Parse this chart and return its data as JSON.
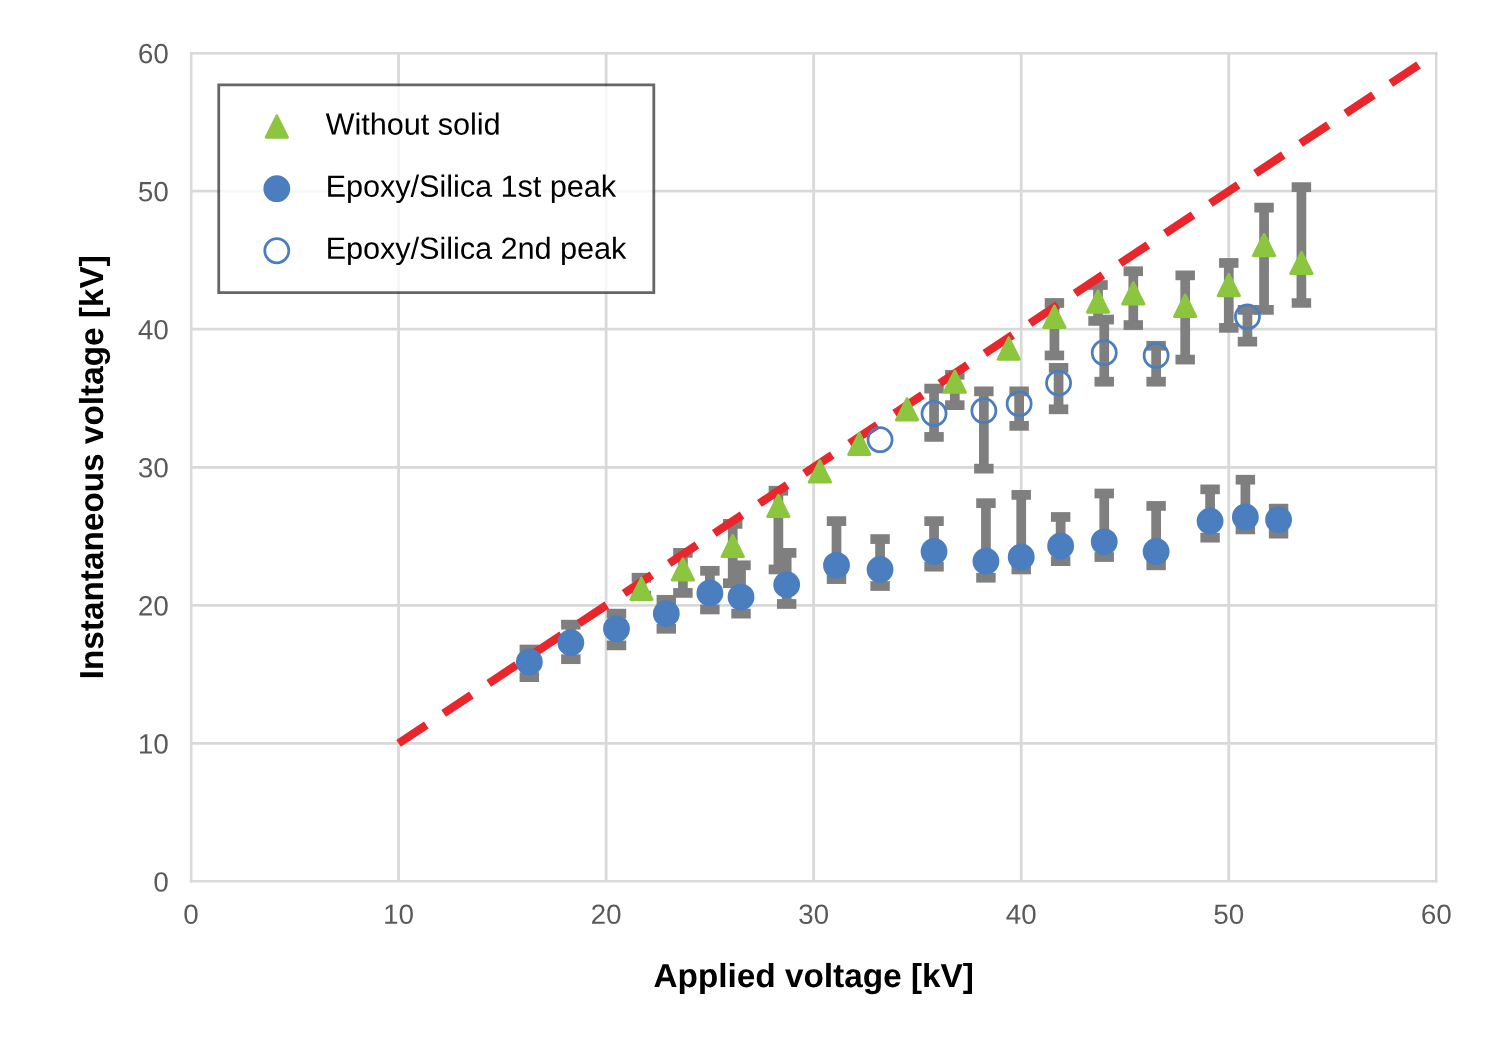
{
  "chart_data": {
    "type": "scatter",
    "xlabel": "Applied voltage [kV]",
    "ylabel": "Instantaneous voltage [kV]",
    "xlim": [
      0,
      60
    ],
    "ylim": [
      0,
      60
    ],
    "xticks": [
      0,
      10,
      20,
      30,
      40,
      50,
      60
    ],
    "yticks": [
      0,
      10,
      20,
      30,
      40,
      50,
      60
    ],
    "grid": true,
    "legend": "top left",
    "series": [
      {
        "type": "line",
        "color": "#e8262b",
        "line_style": "dashed",
        "marker": "none",
        "x": [
          10,
          60
        ],
        "values": [
          10,
          60
        ]
      },
      {
        "name": "Without solid",
        "color": "#8cc63f",
        "marker": "triangle",
        "x": [
          21.7,
          23.7,
          26.1,
          28.3,
          30.3,
          32.2,
          34.5,
          36.8,
          39.4,
          41.6,
          43.7,
          45.4,
          47.9,
          50.0,
          51.7,
          53.5
        ],
        "values": [
          21.2,
          22.6,
          24.3,
          27.2,
          29.7,
          31.7,
          34.2,
          36.2,
          38.6,
          40.9,
          42.0,
          42.6,
          41.7,
          43.2,
          46.1,
          44.8
        ],
        "errors": [
          [
            20.7,
            22.0
          ],
          [
            20.9,
            23.8
          ],
          [
            21.6,
            25.9
          ],
          [
            22.6,
            28.3
          ],
          null,
          null,
          null,
          [
            34.5,
            36.7
          ],
          null,
          [
            38.1,
            41.9
          ],
          [
            40.6,
            43.2
          ],
          [
            40.3,
            44.2
          ],
          [
            37.8,
            43.9
          ],
          [
            40.1,
            44.8
          ],
          [
            41.4,
            48.8
          ],
          [
            41.9,
            50.3
          ]
        ]
      },
      {
        "name": "Epoxy/Silica 1st peak",
        "color": "#4a7ebf",
        "marker": "circle",
        "x": [
          16.3,
          18.3,
          20.5,
          22.9,
          25.0,
          26.5,
          28.7,
          31.1,
          33.2,
          35.8,
          38.3,
          40.0,
          41.9,
          44.0,
          46.5,
          49.1,
          50.8,
          52.4
        ],
        "values": [
          15.9,
          17.3,
          18.3,
          19.4,
          20.9,
          20.6,
          21.5,
          22.9,
          22.6,
          23.9,
          23.2,
          23.5,
          24.3,
          24.6,
          23.9,
          26.1,
          26.4,
          26.2
        ],
        "errors": [
          [
            14.8,
            16.8
          ],
          [
            16.1,
            18.6
          ],
          [
            17.1,
            19.4
          ],
          [
            18.3,
            20.4
          ],
          [
            19.7,
            22.5
          ],
          [
            19.4,
            22.9
          ],
          [
            20.1,
            23.8
          ],
          [
            21.9,
            26.1
          ],
          [
            21.4,
            24.8
          ],
          [
            22.8,
            26.1
          ],
          [
            22.0,
            27.4
          ],
          [
            22.6,
            28.0
          ],
          [
            23.2,
            26.4
          ],
          [
            23.5,
            28.1
          ],
          [
            22.9,
            27.2
          ],
          [
            24.9,
            28.4
          ],
          [
            25.5,
            29.1
          ],
          [
            25.2,
            27.0
          ]
        ]
      },
      {
        "name": "Epoxy/Silica 2nd peak",
        "color": "#4a7ebf",
        "marker": "circle",
        "x": [
          33.2,
          35.8,
          38.2,
          39.9,
          41.8,
          44.0,
          46.5,
          50.9
        ],
        "values": [
          32.0,
          33.9,
          34.1,
          34.6,
          36.1,
          38.3,
          38.1,
          40.9
        ],
        "errors": [
          null,
          [
            32.2,
            35.7
          ],
          [
            29.9,
            35.5
          ],
          [
            33.0,
            35.5
          ],
          [
            34.2,
            37.2
          ],
          [
            36.2,
            40.7
          ],
          [
            36.2,
            38.8
          ],
          [
            39.1,
            41.4
          ]
        ]
      }
    ]
  }
}
